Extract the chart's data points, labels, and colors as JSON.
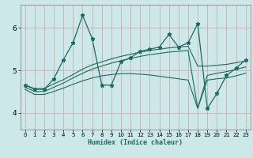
{
  "xlabel": "Humidex (Indice chaleur)",
  "bg_color": "#cce8e8",
  "line_color": "#1a6b60",
  "grid_color": "#b8d4d4",
  "xlim": [
    -0.5,
    23.5
  ],
  "ylim": [
    3.6,
    6.55
  ],
  "xticks": [
    0,
    1,
    2,
    3,
    4,
    5,
    6,
    7,
    8,
    9,
    10,
    11,
    12,
    13,
    14,
    15,
    16,
    17,
    18,
    19,
    20,
    21,
    22,
    23
  ],
  "yticks": [
    4,
    5,
    6
  ],
  "main_x": [
    0,
    1,
    2,
    3,
    4,
    5,
    6,
    7,
    8,
    9,
    10,
    11,
    12,
    13,
    14,
    15,
    16,
    17,
    18,
    19,
    20,
    21,
    22,
    23
  ],
  "main_y": [
    4.65,
    4.55,
    4.55,
    4.8,
    5.25,
    5.65,
    6.3,
    5.75,
    4.65,
    4.65,
    5.2,
    5.3,
    5.45,
    5.5,
    5.55,
    5.85,
    5.55,
    5.65,
    6.1,
    4.1,
    4.45,
    4.88,
    5.05,
    5.25
  ],
  "env_top_x": [
    0,
    1,
    2,
    3,
    4,
    5,
    6,
    7,
    8,
    9,
    10,
    11,
    12,
    13,
    14,
    15,
    16,
    17,
    18,
    19,
    20,
    21,
    22,
    23
  ],
  "env_top_y": [
    4.65,
    4.57,
    4.57,
    4.68,
    4.78,
    4.9,
    5.03,
    5.13,
    5.2,
    5.27,
    5.33,
    5.38,
    5.43,
    5.47,
    5.5,
    5.53,
    5.55,
    5.57,
    5.1,
    5.1,
    5.12,
    5.14,
    5.18,
    5.22
  ],
  "env_mid_x": [
    0,
    1,
    2,
    3,
    4,
    5,
    6,
    7,
    8,
    9,
    10,
    11,
    12,
    13,
    14,
    15,
    16,
    17,
    18,
    19,
    20,
    21,
    22,
    23
  ],
  "env_mid_y": [
    4.6,
    4.5,
    4.5,
    4.6,
    4.7,
    4.82,
    4.93,
    5.03,
    5.1,
    5.17,
    5.23,
    5.28,
    5.33,
    5.37,
    5.4,
    5.43,
    5.45,
    5.47,
    4.1,
    4.88,
    4.93,
    4.97,
    5.02,
    5.08
  ],
  "env_bot_x": [
    0,
    1,
    2,
    3,
    4,
    5,
    6,
    7,
    8,
    9,
    10,
    11,
    12,
    13,
    14,
    15,
    16,
    17,
    18,
    19,
    20,
    21,
    22,
    23
  ],
  "env_bot_y": [
    4.55,
    4.43,
    4.43,
    4.5,
    4.58,
    4.67,
    4.75,
    4.82,
    4.87,
    4.9,
    4.92,
    4.92,
    4.91,
    4.89,
    4.86,
    4.83,
    4.8,
    4.77,
    4.1,
    4.77,
    4.8,
    4.82,
    4.87,
    4.93
  ]
}
